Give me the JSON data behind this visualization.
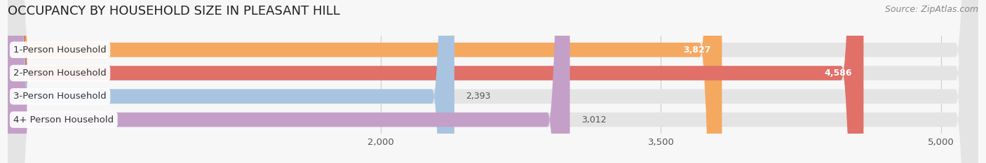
{
  "title": "OCCUPANCY BY HOUSEHOLD SIZE IN PLEASANT HILL",
  "source": "Source: ZipAtlas.com",
  "categories": [
    "1-Person Household",
    "2-Person Household",
    "3-Person Household",
    "4+ Person Household"
  ],
  "values": [
    3827,
    4586,
    2393,
    3012
  ],
  "bar_colors": [
    "#F5A860",
    "#E07068",
    "#A8C4E0",
    "#C4A0C8"
  ],
  "xlim_left": 0,
  "xlim_right": 5200,
  "x_ticks": [
    2000,
    3500,
    5000
  ],
  "x_tick_labels": [
    "2,000",
    "3,500",
    "5,000"
  ],
  "background_color": "#f7f7f7",
  "bar_background_color": "#e4e4e4",
  "title_fontsize": 13,
  "label_fontsize": 9.5,
  "value_fontsize": 9,
  "source_fontsize": 9,
  "bar_height": 0.62,
  "figsize": [
    14.06,
    2.33
  ],
  "dpi": 100
}
